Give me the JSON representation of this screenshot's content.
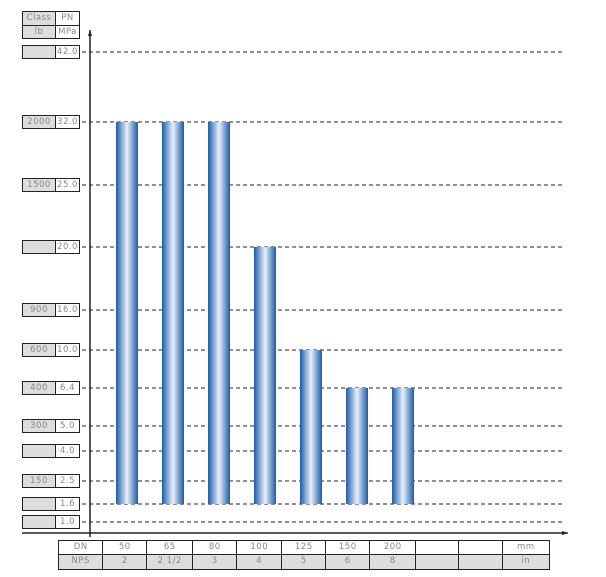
{
  "chart_data": {
    "type": "bar",
    "categories_dn": [
      "50",
      "65",
      "80",
      "100",
      "125",
      "150",
      "200",
      "",
      ""
    ],
    "categories_nps": [
      "2",
      "2 1/2",
      "3",
      "4",
      "5",
      "6",
      "8",
      "",
      ""
    ],
    "values": [
      32.0,
      32.0,
      32.0,
      20.0,
      10.0,
      6.4,
      6.4
    ],
    "bar_base": 1.6,
    "header": {
      "class": "Class",
      "pn": "PN",
      "lb": "lb",
      "mpa": "MPa"
    },
    "y_ticks": [
      {
        "pn": "42.0",
        "cls": ""
      },
      {
        "pn": "32.0",
        "cls": "2000"
      },
      {
        "pn": "25.0",
        "cls": "1500"
      },
      {
        "pn": "20.0",
        "cls": ""
      },
      {
        "pn": "16.0",
        "cls": "900"
      },
      {
        "pn": "10.0",
        "cls": "600"
      },
      {
        "pn": "6.4",
        "cls": "400"
      },
      {
        "pn": "5.0",
        "cls": "300"
      },
      {
        "pn": "4.0",
        "cls": ""
      },
      {
        "pn": "2.5",
        "cls": "150"
      },
      {
        "pn": "1.6",
        "cls": ""
      },
      {
        "pn": "1.0",
        "cls": ""
      }
    ],
    "table": {
      "dn_label": "DN",
      "nps_label": "NPS",
      "mm_unit": "mm",
      "in_unit": "in"
    },
    "grid": true,
    "bar_color": "#1d5aa8"
  }
}
